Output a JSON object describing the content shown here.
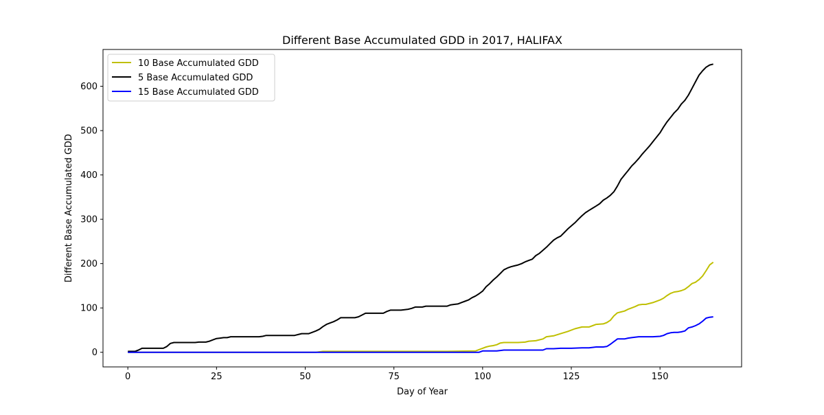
{
  "chart_data": {
    "type": "line",
    "title": "Different Base Accumulated GDD in 2017, HALIFAX",
    "xlabel": "Day of Year",
    "ylabel": "Different Base Accumulated GDD",
    "xlim": [
      -7,
      173
    ],
    "ylim": [
      -33,
      683
    ],
    "xticks": [
      0,
      25,
      50,
      75,
      100,
      125,
      150
    ],
    "yticks": [
      0,
      100,
      200,
      300,
      400,
      500,
      600
    ],
    "grid": false,
    "legend_position": "top-left",
    "series": [
      {
        "name": "10 Base Accumulated GDD",
        "color": "#bfbf00",
        "x": [
          0,
          53,
          55,
          60,
          70,
          80,
          90,
          98,
          100,
          101,
          102,
          103,
          104,
          105,
          106,
          108,
          110,
          112,
          113,
          115,
          117,
          118,
          120,
          122,
          124,
          126,
          128,
          130,
          131,
          132,
          134,
          135,
          136,
          137,
          138,
          139,
          140,
          141,
          142,
          143,
          144,
          145,
          146,
          148,
          150,
          151,
          152,
          153,
          154,
          155,
          156,
          157,
          158,
          159,
          160,
          161,
          162,
          163,
          164,
          165
        ],
        "values": [
          0,
          0,
          2,
          2,
          2,
          2,
          2,
          3,
          9,
          12,
          14,
          15,
          17,
          21,
          22,
          22,
          22,
          23,
          25,
          26,
          30,
          35,
          37,
          42,
          47,
          53,
          57,
          57,
          60,
          63,
          64,
          67,
          72,
          82,
          89,
          91,
          93,
          97,
          100,
          103,
          107,
          108,
          108,
          112,
          118,
          122,
          128,
          133,
          136,
          137,
          139,
          142,
          148,
          155,
          158,
          164,
          172,
          184,
          197,
          203
        ]
      },
      {
        "name": "5 Base Accumulated GDD",
        "color": "#000000",
        "x": [
          0,
          2,
          3,
          4,
          5,
          6,
          7,
          8,
          9,
          10,
          11,
          12,
          13,
          14,
          15,
          16,
          17,
          18,
          19,
          20,
          21,
          22,
          23,
          24,
          25,
          26,
          27,
          28,
          29,
          30,
          31,
          32,
          33,
          34,
          35,
          36,
          37,
          38,
          39,
          40,
          41,
          42,
          43,
          44,
          45,
          46,
          47,
          48,
          49,
          50,
          51,
          52,
          53,
          54,
          55,
          56,
          57,
          58,
          59,
          60,
          61,
          62,
          63,
          64,
          65,
          66,
          67,
          68,
          69,
          70,
          71,
          72,
          73,
          74,
          75,
          76,
          77,
          78,
          79,
          80,
          81,
          82,
          83,
          84,
          85,
          86,
          87,
          88,
          89,
          90,
          91,
          92,
          93,
          94,
          95,
          96,
          97,
          98,
          99,
          100,
          101,
          102,
          103,
          104,
          105,
          106,
          107,
          108,
          109,
          110,
          111,
          112,
          113,
          114,
          115,
          116,
          117,
          118,
          119,
          120,
          121,
          122,
          123,
          124,
          125,
          126,
          127,
          128,
          129,
          130,
          131,
          132,
          133,
          134,
          135,
          136,
          137,
          138,
          139,
          140,
          141,
          142,
          143,
          144,
          145,
          146,
          147,
          148,
          149,
          150,
          151,
          152,
          153,
          154,
          155,
          156,
          157,
          158,
          159,
          160,
          161,
          162,
          163,
          164,
          165
        ],
        "values": [
          2,
          2,
          5,
          9,
          9,
          9,
          9,
          9,
          9,
          9,
          13,
          20,
          22,
          22,
          22,
          22,
          22,
          22,
          22,
          23,
          23,
          23,
          25,
          28,
          31,
          32,
          33,
          33,
          35,
          35,
          35,
          35,
          35,
          35,
          35,
          35,
          35,
          36,
          38,
          38,
          38,
          38,
          38,
          38,
          38,
          38,
          38,
          40,
          42,
          42,
          42,
          45,
          48,
          52,
          58,
          63,
          66,
          69,
          73,
          78,
          78,
          78,
          78,
          78,
          80,
          84,
          88,
          88,
          88,
          88,
          88,
          88,
          92,
          95,
          95,
          95,
          95,
          96,
          97,
          99,
          102,
          102,
          102,
          104,
          104,
          104,
          104,
          104,
          104,
          104,
          107,
          108,
          109,
          112,
          115,
          118,
          123,
          127,
          132,
          138,
          148,
          155,
          163,
          170,
          178,
          186,
          190,
          193,
          195,
          197,
          200,
          204,
          207,
          210,
          218,
          223,
          230,
          237,
          245,
          253,
          258,
          262,
          270,
          278,
          285,
          292,
          300,
          308,
          315,
          320,
          325,
          330,
          335,
          343,
          348,
          354,
          362,
          375,
          390,
          400,
          410,
          420,
          428,
          437,
          447,
          456,
          465,
          475,
          485,
          495,
          508,
          520,
          530,
          540,
          548,
          560,
          568,
          580,
          595,
          610,
          625,
          635,
          643,
          648,
          650
        ]
      },
      {
        "name": "15 Base Accumulated GDD",
        "color": "#0000ff",
        "x": [
          0,
          99,
          100,
          101,
          102,
          103,
          104,
          105,
          106,
          110,
          115,
          117,
          118,
          120,
          122,
          125,
          128,
          130,
          131,
          132,
          134,
          135,
          136,
          137,
          138,
          139,
          140,
          141,
          142,
          143,
          144,
          145,
          146,
          148,
          150,
          151,
          152,
          153,
          154,
          155,
          156,
          157,
          158,
          159,
          160,
          161,
          162,
          163,
          164,
          165
        ],
        "values": [
          0,
          0,
          3,
          3,
          3,
          3,
          3,
          4,
          5,
          5,
          5,
          5,
          8,
          8,
          9,
          9,
          10,
          10,
          11,
          12,
          12,
          13,
          18,
          24,
          30,
          30,
          30,
          32,
          33,
          34,
          35,
          35,
          35,
          35,
          36,
          38,
          42,
          44,
          45,
          45,
          46,
          48,
          55,
          57,
          60,
          64,
          70,
          77,
          79,
          80
        ]
      }
    ]
  }
}
